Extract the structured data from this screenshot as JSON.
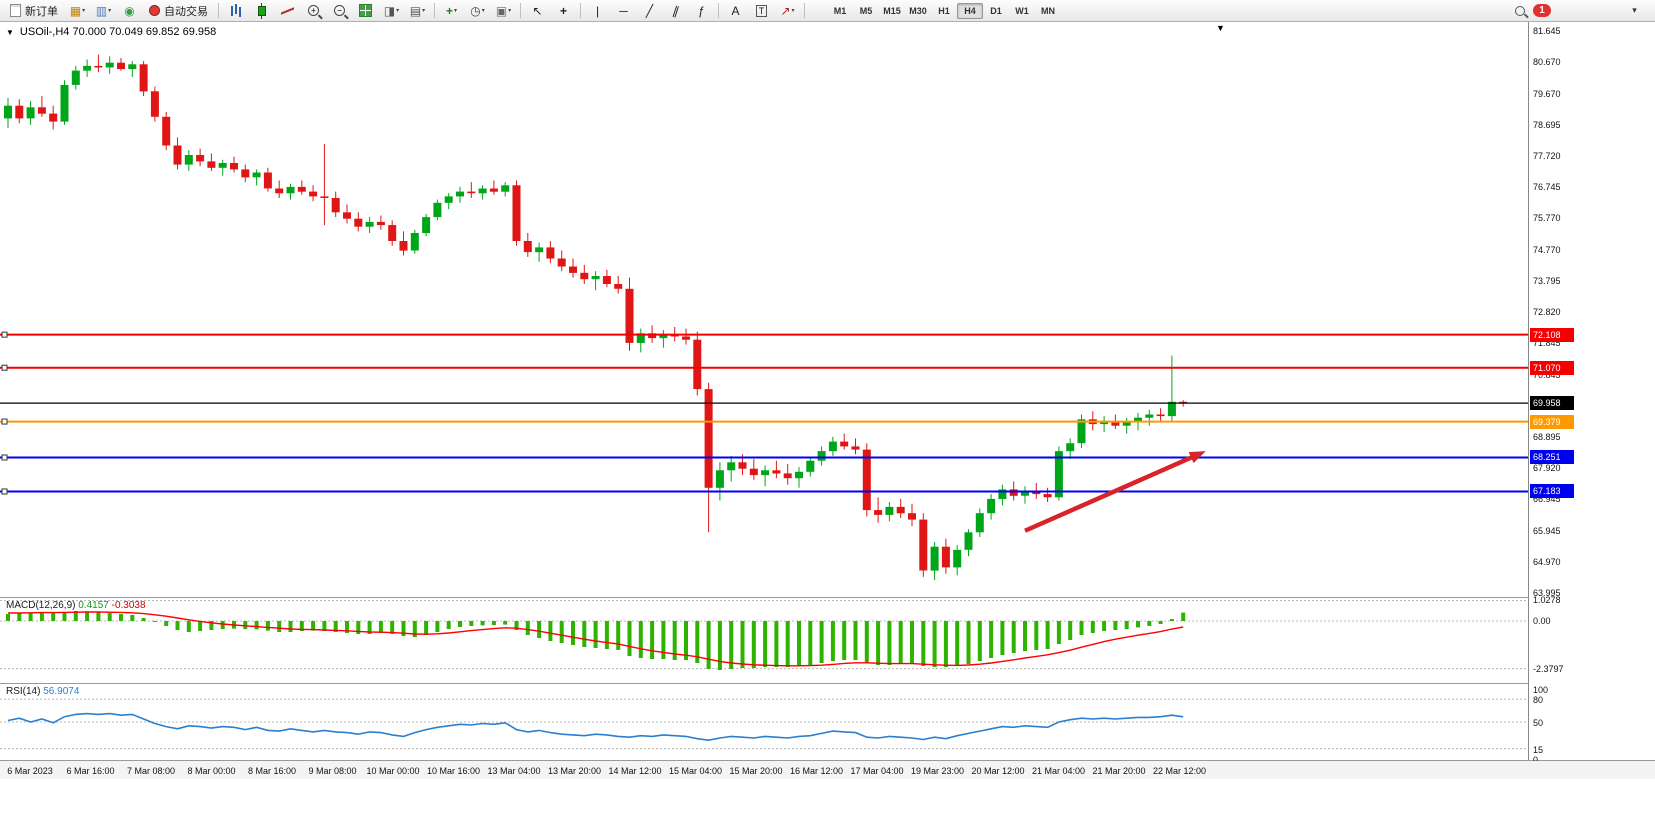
{
  "toolbar": {
    "new_order_label": "新订单",
    "autotrade_label": "自动交易",
    "timeframes": [
      "M1",
      "M5",
      "M15",
      "M30",
      "H1",
      "H4",
      "D1",
      "W1",
      "MN"
    ],
    "active_timeframe": "H4",
    "notification_count": "1",
    "items": [
      {
        "type": "button",
        "name": "new-order-button",
        "icon": "new-order-icon",
        "icon_css": "ic-page",
        "label": "新订单"
      },
      {
        "type": "icon",
        "name": "charts-icon",
        "glyph": "▦",
        "color": "#b8860b",
        "caret": true
      },
      {
        "type": "icon",
        "name": "profiles-icon",
        "glyph": "▥",
        "color": "#4d7ac2",
        "caret": true
      },
      {
        "type": "icon",
        "name": "news-icon",
        "glyph": "◉",
        "color": "#2f9e44"
      },
      {
        "type": "button",
        "name": "autotrade-button",
        "icon": "autotrade-status-icon",
        "icon_css": "ic-dot",
        "label": "自动交易"
      },
      {
        "type": "separator"
      },
      {
        "type": "icon",
        "name": "bar-chart-mode-icon",
        "css": "ic-bars"
      },
      {
        "type": "icon",
        "name": "candlestick-mode-icon",
        "css": "ic-candle"
      },
      {
        "type": "icon",
        "name": "line-chart-mode-icon",
        "css": "ic-line"
      },
      {
        "type": "icon",
        "name": "zoom-in-icon",
        "css": "ic-zoom",
        "glyph": "+"
      },
      {
        "type": "icon",
        "name": "zoom-out-icon",
        "css": "ic-zoom",
        "glyph": "−"
      },
      {
        "type": "icon",
        "name": "tile-windows-icon",
        "css": "ic-grid"
      },
      {
        "type": "icon",
        "name": "new-chart-icon",
        "glyph": "◨",
        "color": "#555",
        "caret": true
      },
      {
        "type": "icon",
        "name": "chart-list-icon",
        "glyph": "▤",
        "color": "#555",
        "caret": true
      },
      {
        "type": "separator"
      },
      {
        "type": "icon",
        "name": "add-indicator-icon",
        "glyph": "+",
        "color": "#1c7c1c",
        "bold": true,
        "caret": true
      },
      {
        "type": "icon",
        "name": "period-clock-icon",
        "glyph": "◷",
        "color": "#444",
        "caret": true
      },
      {
        "type": "icon",
        "name": "template-icon",
        "glyph": "▣",
        "color": "#666",
        "caret": true
      },
      {
        "type": "separator"
      },
      {
        "type": "icon",
        "name": "cursor-icon",
        "glyph": "↖",
        "color": "#222"
      },
      {
        "type": "icon",
        "name": "crosshair-icon",
        "glyph": "+",
        "color": "#222",
        "bold": true
      },
      {
        "type": "separator"
      },
      {
        "type": "icon",
        "name": "vertical-line-icon",
        "glyph": "|",
        "color": "#222"
      },
      {
        "type": "icon",
        "name": "horizontal-line-icon",
        "glyph": "─",
        "color": "#222"
      },
      {
        "type": "icon",
        "name": "trendline-icon",
        "glyph": "╱",
        "color": "#222"
      },
      {
        "type": "icon",
        "name": "channel-icon",
        "glyph": "∥",
        "color": "#222",
        "tilt": true
      },
      {
        "type": "icon",
        "name": "fibonacci-icon",
        "glyph": "ƒ",
        "color": "#222"
      },
      {
        "type": "separator"
      },
      {
        "type": "icon",
        "name": "text-icon",
        "glyph": "A",
        "color": "#222"
      },
      {
        "type": "icon",
        "name": "label-icon",
        "glyph": "T",
        "color": "#222",
        "boxed": true
      },
      {
        "type": "icon",
        "name": "shapes-icon",
        "glyph": "↗",
        "color": "#b22222",
        "caret": true
      },
      {
        "type": "separator"
      }
    ]
  },
  "chart": {
    "type": "candlestick",
    "title_full": "USOil-,H4  70.000 70.049 69.852 69.958",
    "symbol": "USOil-",
    "period": "H4",
    "ohlc": {
      "open": "70.000",
      "high": "70.049",
      "low": "69.852",
      "close": "69.958"
    },
    "price_max": 81.645,
    "price_min": 63.995,
    "up_color": "#00a619",
    "down_color": "#e01515",
    "price_axis_labels": [
      "81.645",
      "80.670",
      "79.670",
      "78.695",
      "77.720",
      "76.745",
      "75.770",
      "74.770",
      "73.795",
      "72.820",
      "71.845",
      "70.845",
      "69.895",
      "68.895",
      "67.920",
      "66.945",
      "65.945",
      "64.970",
      "63.995"
    ],
    "hlines": [
      {
        "price": 72.108,
        "label": "72.108",
        "color": "#f40000",
        "kind": "object"
      },
      {
        "price": 71.07,
        "label": "71.070",
        "color": "#f40000",
        "kind": "object"
      },
      {
        "price": 69.958,
        "label": "69.958",
        "color": "#000000",
        "kind": "bid"
      },
      {
        "price": 69.379,
        "label": "69.379",
        "color": "#ff9900",
        "kind": "object"
      },
      {
        "price": 68.251,
        "label": "68.251",
        "color": "#0000f0",
        "kind": "object"
      },
      {
        "price": 67.183,
        "label": "67.183",
        "color": "#0000f0",
        "kind": "object"
      }
    ],
    "arrow": {
      "from_index": 90,
      "from_price": 65.95,
      "to_index": 106,
      "to_price": 68.45,
      "color": "#d8232a"
    },
    "time_axis_labels": [
      "6 Mar 2023",
      "6 Mar 16:00",
      "7 Mar 08:00",
      "8 Mar 00:00",
      "8 Mar 16:00",
      "9 Mar 08:00",
      "10 Mar 00:00",
      "10 Mar 16:00",
      "13 Mar 04:00",
      "13 Mar 20:00",
      "14 Mar 12:00",
      "15 Mar 04:00",
      "15 Mar 20:00",
      "16 Mar 12:00",
      "17 Mar 04:00",
      "19 Mar 23:00",
      "20 Mar 12:00",
      "21 Mar 04:00",
      "21 Mar 20:00",
      "22 Mar 12:00"
    ],
    "candles": [
      [
        78.9,
        79.55,
        78.6,
        79.3
      ],
      [
        79.3,
        79.5,
        78.75,
        78.9
      ],
      [
        78.9,
        79.45,
        78.7,
        79.25
      ],
      [
        79.25,
        79.6,
        78.95,
        79.05
      ],
      [
        79.05,
        79.3,
        78.55,
        78.8
      ],
      [
        78.8,
        80.1,
        78.7,
        79.95
      ],
      [
        79.95,
        80.55,
        79.8,
        80.4
      ],
      [
        80.4,
        80.75,
        80.2,
        80.55
      ],
      [
        80.55,
        80.9,
        80.35,
        80.5
      ],
      [
        80.5,
        80.85,
        80.3,
        80.65
      ],
      [
        80.65,
        80.8,
        80.4,
        80.45
      ],
      [
        80.45,
        80.7,
        80.2,
        80.6
      ],
      [
        80.6,
        80.7,
        79.6,
        79.75
      ],
      [
        79.75,
        79.9,
        78.8,
        78.95
      ],
      [
        78.95,
        79.1,
        77.9,
        78.05
      ],
      [
        78.05,
        78.3,
        77.3,
        77.45
      ],
      [
        77.45,
        77.9,
        77.25,
        77.75
      ],
      [
        77.75,
        77.95,
        77.4,
        77.55
      ],
      [
        77.55,
        77.8,
        77.25,
        77.35
      ],
      [
        77.35,
        77.6,
        77.1,
        77.5
      ],
      [
        77.5,
        77.7,
        77.2,
        77.3
      ],
      [
        77.3,
        77.45,
        76.9,
        77.05
      ],
      [
        77.05,
        77.3,
        76.8,
        77.2
      ],
      [
        77.2,
        77.35,
        76.6,
        76.7
      ],
      [
        76.7,
        76.95,
        76.4,
        76.55
      ],
      [
        76.55,
        76.85,
        76.35,
        76.75
      ],
      [
        76.75,
        76.95,
        76.5,
        76.6
      ],
      [
        76.6,
        76.8,
        76.3,
        76.45
      ],
      [
        76.45,
        78.1,
        75.55,
        76.4
      ],
      [
        76.4,
        76.6,
        75.8,
        75.95
      ],
      [
        75.95,
        76.2,
        75.6,
        75.75
      ],
      [
        75.75,
        75.95,
        75.35,
        75.5
      ],
      [
        75.5,
        75.8,
        75.3,
        75.65
      ],
      [
        75.65,
        75.85,
        75.4,
        75.55
      ],
      [
        75.55,
        75.7,
        74.9,
        75.05
      ],
      [
        75.05,
        75.35,
        74.6,
        74.75
      ],
      [
        74.75,
        75.4,
        74.65,
        75.3
      ],
      [
        75.3,
        75.9,
        75.2,
        75.8
      ],
      [
        75.8,
        76.35,
        75.7,
        76.25
      ],
      [
        76.25,
        76.55,
        76.05,
        76.45
      ],
      [
        76.45,
        76.75,
        76.25,
        76.6
      ],
      [
        76.6,
        76.9,
        76.4,
        76.55
      ],
      [
        76.55,
        76.8,
        76.35,
        76.7
      ],
      [
        76.7,
        76.95,
        76.5,
        76.6
      ],
      [
        76.6,
        76.9,
        76.45,
        76.8
      ],
      [
        76.8,
        76.95,
        74.9,
        75.05
      ],
      [
        75.05,
        75.3,
        74.55,
        74.7
      ],
      [
        74.7,
        75.0,
        74.4,
        74.85
      ],
      [
        74.85,
        75.05,
        74.35,
        74.5
      ],
      [
        74.5,
        74.75,
        74.1,
        74.25
      ],
      [
        74.25,
        74.5,
        73.9,
        74.05
      ],
      [
        74.05,
        74.3,
        73.7,
        73.85
      ],
      [
        73.85,
        74.1,
        73.5,
        73.95
      ],
      [
        73.95,
        74.15,
        73.6,
        73.7
      ],
      [
        73.7,
        73.95,
        73.4,
        73.55
      ],
      [
        73.55,
        73.9,
        71.6,
        71.85
      ],
      [
        71.85,
        72.3,
        71.55,
        72.15
      ],
      [
        72.15,
        72.4,
        71.85,
        72.0
      ],
      [
        72.0,
        72.25,
        71.7,
        72.1
      ],
      [
        72.1,
        72.35,
        71.9,
        72.05
      ],
      [
        72.05,
        72.3,
        71.8,
        71.95
      ],
      [
        71.95,
        72.2,
        70.2,
        70.4
      ],
      [
        70.4,
        70.6,
        65.9,
        67.3
      ],
      [
        67.3,
        68.1,
        66.9,
        67.85
      ],
      [
        67.85,
        68.3,
        67.5,
        68.1
      ],
      [
        68.1,
        68.35,
        67.7,
        67.9
      ],
      [
        67.9,
        68.2,
        67.55,
        67.7
      ],
      [
        67.7,
        68.0,
        67.35,
        67.85
      ],
      [
        67.85,
        68.15,
        67.6,
        67.75
      ],
      [
        67.75,
        68.05,
        67.4,
        67.6
      ],
      [
        67.6,
        67.95,
        67.3,
        67.8
      ],
      [
        67.8,
        68.25,
        67.65,
        68.15
      ],
      [
        68.15,
        68.6,
        68.0,
        68.45
      ],
      [
        68.45,
        68.9,
        68.3,
        68.75
      ],
      [
        68.75,
        69.0,
        68.5,
        68.6
      ],
      [
        68.6,
        68.85,
        68.35,
        68.5
      ],
      [
        68.5,
        68.7,
        66.4,
        66.6
      ],
      [
        66.6,
        67.0,
        66.2,
        66.45
      ],
      [
        66.45,
        66.85,
        66.25,
        66.7
      ],
      [
        66.7,
        66.95,
        66.35,
        66.5
      ],
      [
        66.5,
        66.8,
        66.1,
        66.3
      ],
      [
        66.3,
        66.5,
        64.5,
        64.7
      ],
      [
        64.7,
        65.6,
        64.4,
        65.45
      ],
      [
        65.45,
        65.7,
        64.6,
        64.8
      ],
      [
        64.8,
        65.5,
        64.55,
        65.35
      ],
      [
        65.35,
        66.0,
        65.15,
        65.9
      ],
      [
        65.9,
        66.65,
        65.75,
        66.5
      ],
      [
        66.5,
        67.1,
        66.3,
        66.95
      ],
      [
        66.95,
        67.4,
        66.75,
        67.25
      ],
      [
        67.25,
        67.5,
        66.9,
        67.05
      ],
      [
        67.05,
        67.35,
        66.8,
        67.2
      ],
      [
        67.2,
        67.45,
        66.95,
        67.1
      ],
      [
        67.1,
        67.3,
        66.85,
        67.0
      ],
      [
        67.0,
        68.6,
        66.9,
        68.45
      ],
      [
        68.45,
        68.85,
        68.2,
        68.7
      ],
      [
        68.7,
        69.6,
        68.55,
        69.45
      ],
      [
        69.45,
        69.7,
        69.1,
        69.3
      ],
      [
        69.3,
        69.55,
        69.05,
        69.4
      ],
      [
        69.4,
        69.6,
        69.15,
        69.25
      ],
      [
        69.25,
        69.5,
        69.0,
        69.35
      ],
      [
        69.35,
        69.65,
        69.1,
        69.5
      ],
      [
        69.5,
        69.75,
        69.25,
        69.6
      ],
      [
        69.6,
        69.8,
        69.35,
        69.55
      ],
      [
        69.55,
        71.45,
        69.4,
        70.0
      ],
      [
        70.0,
        70.05,
        69.85,
        69.96
      ]
    ]
  },
  "macd": {
    "name": "MACD(12,26,9)",
    "value_main": "0.4157",
    "value_signal": "-0.3038",
    "hist_color": "#2db300",
    "signal_color": "#ff0000",
    "scale_labels": [
      {
        "text": "1.0278",
        "value": 1.0278
      },
      {
        "text": "0.00",
        "value": 0
      },
      {
        "text": "-2.3797",
        "value": -2.3797
      }
    ],
    "histogram": [
      0.35,
      0.4,
      0.42,
      0.45,
      0.4,
      0.45,
      0.5,
      0.48,
      0.45,
      0.4,
      0.35,
      0.3,
      0.15,
      -0.05,
      -0.25,
      -0.45,
      -0.55,
      -0.5,
      -0.45,
      -0.4,
      -0.38,
      -0.4,
      -0.42,
      -0.48,
      -0.55,
      -0.55,
      -0.5,
      -0.48,
      -0.5,
      -0.55,
      -0.6,
      -0.65,
      -0.65,
      -0.6,
      -0.65,
      -0.75,
      -0.8,
      -0.7,
      -0.55,
      -0.4,
      -0.3,
      -0.25,
      -0.22,
      -0.2,
      -0.18,
      -0.45,
      -0.7,
      -0.85,
      -1.0,
      -1.1,
      -1.2,
      -1.3,
      -1.35,
      -1.4,
      -1.45,
      -1.75,
      -1.85,
      -1.9,
      -1.9,
      -1.95,
      -1.95,
      -2.1,
      -2.4,
      -2.45,
      -2.4,
      -2.35,
      -2.35,
      -2.3,
      -2.3,
      -2.3,
      -2.25,
      -2.2,
      -2.1,
      -2.0,
      -1.95,
      -1.95,
      -2.1,
      -2.2,
      -2.2,
      -2.15,
      -2.15,
      -2.25,
      -2.3,
      -2.3,
      -2.25,
      -2.15,
      -2.0,
      -1.85,
      -1.7,
      -1.6,
      -1.5,
      -1.45,
      -1.4,
      -1.15,
      -0.95,
      -0.7,
      -0.6,
      -0.5,
      -0.45,
      -0.4,
      -0.32,
      -0.25,
      -0.15,
      0.1,
      0.42
    ],
    "signal": [
      0.4,
      0.4,
      0.41,
      0.42,
      0.42,
      0.43,
      0.44,
      0.45,
      0.45,
      0.44,
      0.43,
      0.41,
      0.37,
      0.31,
      0.24,
      0.15,
      0.06,
      -0.02,
      -0.09,
      -0.15,
      -0.2,
      -0.24,
      -0.28,
      -0.32,
      -0.36,
      -0.4,
      -0.42,
      -0.43,
      -0.45,
      -0.47,
      -0.49,
      -0.52,
      -0.55,
      -0.56,
      -0.58,
      -0.61,
      -0.65,
      -0.66,
      -0.64,
      -0.6,
      -0.54,
      -0.48,
      -0.43,
      -0.38,
      -0.34,
      -0.36,
      -0.43,
      -0.51,
      -0.61,
      -0.71,
      -0.81,
      -0.91,
      -1.0,
      -1.08,
      -1.15,
      -1.27,
      -1.39,
      -1.49,
      -1.57,
      -1.65,
      -1.71,
      -1.79,
      -1.91,
      -2.02,
      -2.1,
      -2.15,
      -2.19,
      -2.21,
      -2.23,
      -2.24,
      -2.24,
      -2.23,
      -2.21,
      -2.17,
      -2.12,
      -2.09,
      -2.09,
      -2.11,
      -2.13,
      -2.13,
      -2.13,
      -2.16,
      -2.19,
      -2.21,
      -2.22,
      -2.2,
      -2.16,
      -2.1,
      -2.02,
      -1.94,
      -1.85,
      -1.77,
      -1.69,
      -1.58,
      -1.46,
      -1.31,
      -1.17,
      -1.03,
      -0.91,
      -0.81,
      -0.71,
      -0.62,
      -0.53,
      -0.4,
      -0.3
    ]
  },
  "rsi": {
    "name": "RSI(14)",
    "value": "56.9074",
    "line_color": "#2a7fd0",
    "scale_labels": [
      {
        "text": "100",
        "value": 100
      },
      {
        "text": "80",
        "value": 80
      },
      {
        "text": "50",
        "value": 50
      },
      {
        "text": "15",
        "value": 15
      },
      {
        "text": "0",
        "value": 0
      }
    ],
    "levels": [
      80,
      50,
      15
    ],
    "values": [
      52,
      55,
      50,
      54,
      49,
      57,
      60,
      61,
      60,
      61,
      59,
      60,
      54,
      48,
      44,
      41,
      45,
      44,
      42,
      44,
      43,
      40,
      43,
      39,
      38,
      41,
      39,
      37,
      39,
      37,
      36,
      34,
      37,
      36,
      33,
      31,
      36,
      40,
      43,
      45,
      47,
      46,
      48,
      47,
      49,
      40,
      37,
      39,
      36,
      34,
      33,
      32,
      34,
      33,
      31,
      30,
      32,
      31,
      33,
      32,
      31,
      28,
      26,
      29,
      31,
      30,
      29,
      31,
      30,
      29,
      31,
      32,
      35,
      38,
      37,
      36,
      30,
      29,
      31,
      30,
      29,
      27,
      30,
      28,
      32,
      35,
      38,
      41,
      44,
      43,
      45,
      44,
      43,
      50,
      53,
      55,
      54,
      55,
      54,
      55,
      56,
      56,
      57,
      59,
      56.9
    ]
  }
}
